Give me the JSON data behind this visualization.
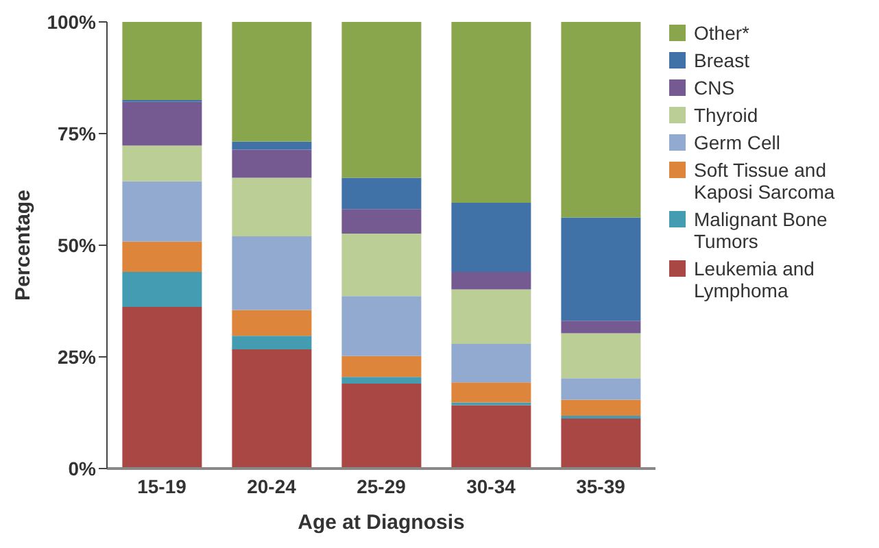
{
  "chart_data": {
    "type": "bar",
    "stacked": true,
    "xlabel": "Age at Diagnosis",
    "ylabel": "Percentage",
    "categories": [
      "15-19",
      "20-24",
      "25-29",
      "30-34",
      "35-39"
    ],
    "ylim": [
      0,
      100
    ],
    "yticks": [
      {
        "value": 0,
        "label": "0%"
      },
      {
        "value": 25,
        "label": "25%"
      },
      {
        "value": 50,
        "label": "50%"
      },
      {
        "value": 75,
        "label": "75%"
      },
      {
        "value": 100,
        "label": "100%"
      }
    ],
    "grid": false,
    "legend": "right",
    "series": [
      {
        "name": "Leukemia and Lymphoma",
        "color": "#a94744",
        "values": [
          36.2,
          26.7,
          19.0,
          14.2,
          11.2
        ]
      },
      {
        "name": "Malignant Bone Tumors",
        "color": "#439cb2",
        "values": [
          7.8,
          3.0,
          1.5,
          0.6,
          0.6
        ]
      },
      {
        "name": "Soft Tissue and Kaposi Sarcoma",
        "color": "#dc853b",
        "values": [
          6.8,
          5.8,
          4.7,
          4.5,
          3.6
        ]
      },
      {
        "name": "Germ Cell",
        "color": "#92aad0",
        "values": [
          13.5,
          16.5,
          13.4,
          8.6,
          4.8
        ]
      },
      {
        "name": "Thyroid",
        "color": "#bace96",
        "values": [
          8.0,
          13.1,
          14.0,
          12.2,
          10.1
        ]
      },
      {
        "name": "CNS",
        "color": "#755a91",
        "values": [
          9.8,
          6.3,
          5.5,
          3.9,
          2.8
        ]
      },
      {
        "name": "Breast",
        "color": "#4072a8",
        "values": [
          0.4,
          1.8,
          7.0,
          15.5,
          23.1
        ]
      },
      {
        "name": "Other*",
        "color": "#8aa64c",
        "values": [
          17.5,
          26.8,
          34.9,
          40.5,
          43.8
        ]
      }
    ]
  }
}
